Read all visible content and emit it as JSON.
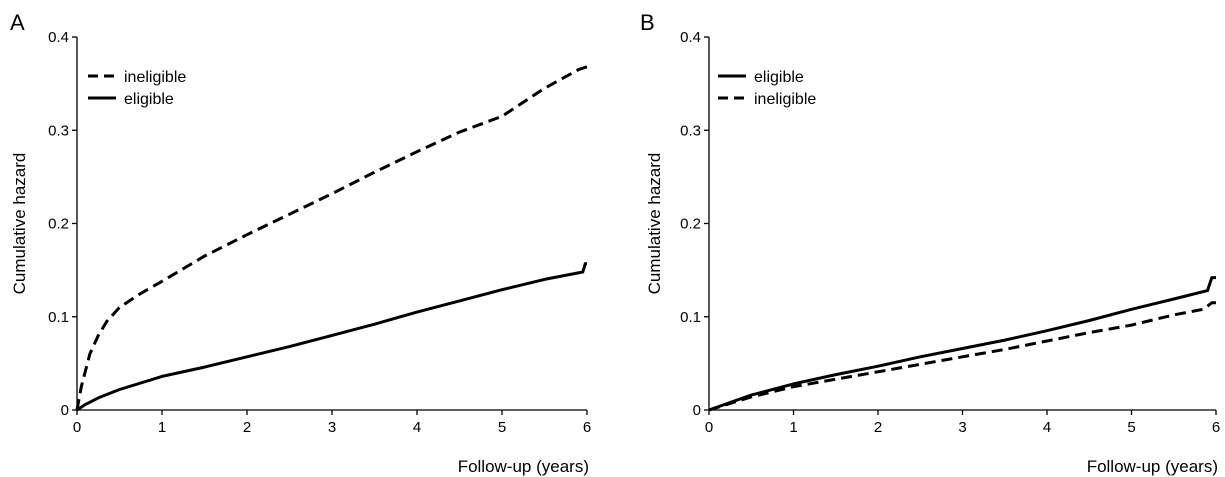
{
  "chart_data": [
    {
      "panel_label": "A",
      "type": "line",
      "xlabel": "Follow-up (years)",
      "ylabel": "Cumulative hazard",
      "xlim": [
        0,
        6
      ],
      "ylim": [
        0,
        0.4
      ],
      "xticks": [
        "0",
        "1",
        "2",
        "3",
        "4",
        "5",
        "6"
      ],
      "yticks": [
        "0",
        "0.1",
        "0.2",
        "0.3",
        "0.4"
      ],
      "legend_position": "top-left",
      "grid": false,
      "series": [
        {
          "name": "ineligible",
          "style": "dashed",
          "color": "#000000",
          "x": [
            0,
            0.05,
            0.15,
            0.25,
            0.35,
            0.5,
            0.75,
            1.0,
            1.5,
            2.0,
            2.5,
            3.0,
            3.5,
            4.0,
            4.5,
            5.0,
            5.5,
            5.9,
            6.0
          ],
          "y": [
            0,
            0.025,
            0.06,
            0.08,
            0.095,
            0.11,
            0.125,
            0.138,
            0.165,
            0.188,
            0.21,
            0.232,
            0.255,
            0.277,
            0.298,
            0.315,
            0.345,
            0.365,
            0.368
          ]
        },
        {
          "name": "eligible",
          "style": "solid",
          "color": "#000000",
          "x": [
            0,
            0.1,
            0.25,
            0.5,
            0.75,
            1.0,
            1.5,
            2.0,
            2.5,
            3.0,
            3.5,
            4.0,
            4.5,
            5.0,
            5.5,
            5.95,
            5.98,
            6.0
          ],
          "y": [
            0,
            0.006,
            0.013,
            0.022,
            0.029,
            0.036,
            0.046,
            0.057,
            0.068,
            0.08,
            0.092,
            0.105,
            0.117,
            0.129,
            0.14,
            0.148,
            0.157,
            0.157
          ]
        }
      ]
    },
    {
      "panel_label": "B",
      "type": "line",
      "xlabel": "Follow-up (years)",
      "ylabel": "Cumulative hazard",
      "xlim": [
        0,
        6
      ],
      "ylim": [
        0,
        0.4
      ],
      "xticks": [
        "0",
        "1",
        "2",
        "3",
        "4",
        "5",
        "6"
      ],
      "yticks": [
        "0",
        "0.1",
        "0.2",
        "0.3",
        "0.4"
      ],
      "legend_position": "top-left",
      "grid": false,
      "series": [
        {
          "name": "eligible",
          "style": "solid",
          "color": "#000000",
          "x": [
            0,
            0.25,
            0.5,
            1.0,
            1.5,
            2.0,
            2.5,
            3.0,
            3.5,
            4.0,
            4.5,
            5.0,
            5.5,
            5.9,
            5.95,
            6.0
          ],
          "y": [
            0,
            0.008,
            0.016,
            0.028,
            0.038,
            0.047,
            0.057,
            0.066,
            0.075,
            0.085,
            0.096,
            0.108,
            0.119,
            0.128,
            0.142,
            0.142
          ]
        },
        {
          "name": "ineligible",
          "style": "dashed",
          "color": "#000000",
          "x": [
            0,
            0.25,
            0.5,
            1.0,
            1.5,
            2.0,
            2.5,
            3.0,
            3.5,
            4.0,
            4.5,
            5.0,
            5.5,
            5.85,
            5.95,
            6.0
          ],
          "y": [
            0,
            0.007,
            0.014,
            0.025,
            0.033,
            0.041,
            0.049,
            0.057,
            0.065,
            0.074,
            0.083,
            0.091,
            0.102,
            0.108,
            0.115,
            0.115
          ]
        }
      ]
    }
  ]
}
